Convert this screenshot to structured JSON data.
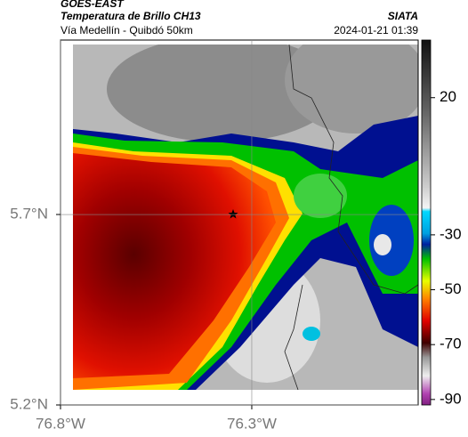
{
  "header": {
    "satellite": "GOES-EAST",
    "product": "Temperatura de Brillo CH13",
    "region": "Vía Medellín - Quibdó 50km",
    "source": "SIATA",
    "datetime": "2024-01-21 01:39"
  },
  "map": {
    "xlim": [
      -76.8,
      -75.865
    ],
    "ylim": [
      5.2,
      6.158
    ],
    "xticks": [
      {
        "value": -76.8,
        "label": "76.8°W"
      },
      {
        "value": -76.3,
        "label": "76.3°W"
      }
    ],
    "yticks": [
      {
        "value": 5.7,
        "label": "5.7°N"
      },
      {
        "value": 5.2,
        "label": "5.2°N"
      }
    ],
    "grid": true
  },
  "colorbar": {
    "lim": [
      41,
      -92
    ],
    "ticks": [
      20,
      -30,
      -50,
      -70,
      -90
    ]
  }
}
